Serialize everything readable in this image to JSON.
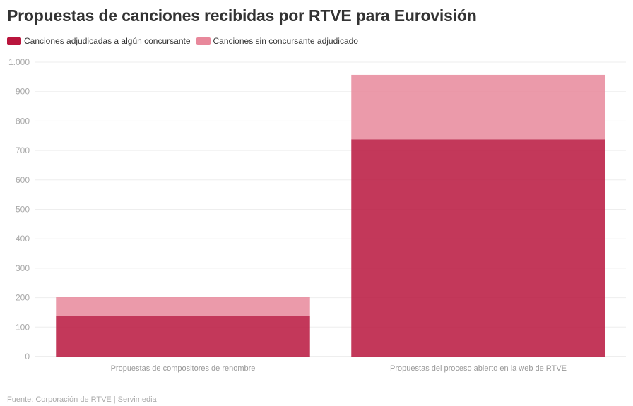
{
  "title": "Propuestas de canciones recibidas por RTVE para Eurovisión",
  "legend": [
    {
      "label": "Canciones adjudicadas a algún concursante",
      "color": "#b9153d"
    },
    {
      "label": "Canciones sin concursante adjudicado",
      "color": "#e8889b"
    }
  ],
  "footer": {
    "source": "Fuente: Corporación de RTVE",
    "separator": "|",
    "credit": "Servimedia"
  },
  "chart_data": {
    "type": "bar",
    "stacked": true,
    "categories": [
      "Propuestas de compositores de renombre",
      "Propuestas del proceso abierto en la web de RTVE"
    ],
    "series": [
      {
        "name": "Canciones adjudicadas a algún concursante",
        "values": [
          138,
          738
        ],
        "color": "#b9153d"
      },
      {
        "name": "Canciones sin concursante adjudicado",
        "values": [
          64,
          219
        ],
        "color": "#e8889b"
      }
    ],
    "ylim": [
      0,
      1000
    ],
    "yticks": [
      0,
      100,
      200,
      300,
      400,
      500,
      600,
      700,
      800,
      900,
      1000
    ],
    "ytick_labels": [
      "0",
      "100",
      "200",
      "300",
      "400",
      "500",
      "600",
      "700",
      "800",
      "900",
      "1.000"
    ],
    "grid": true,
    "legend_position": "top-left"
  }
}
